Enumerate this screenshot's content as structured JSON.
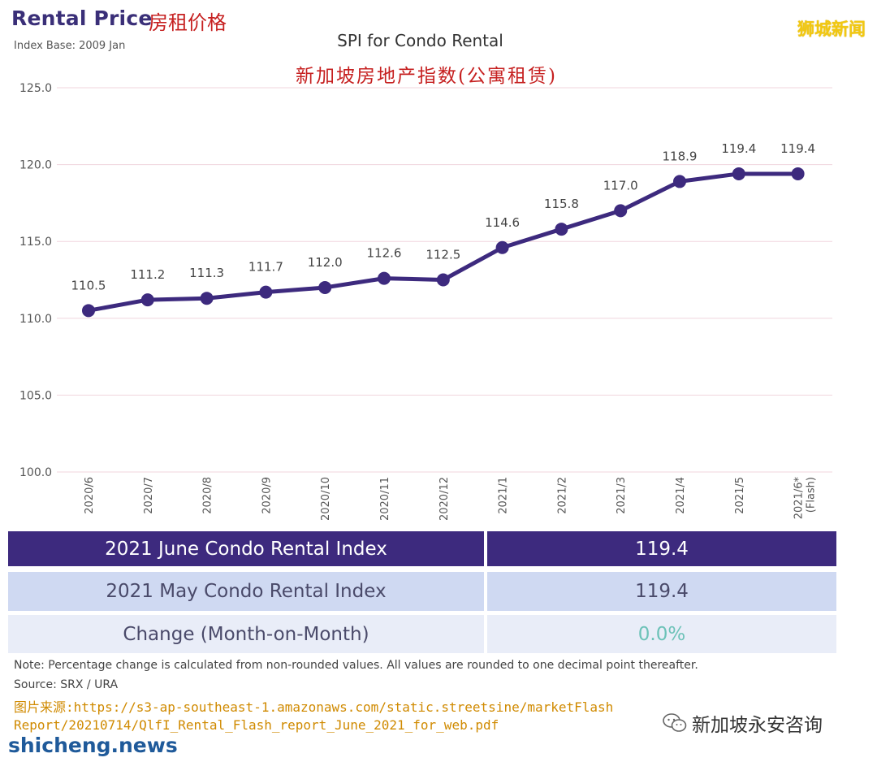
{
  "header": {
    "title": "Rental Price",
    "title_cn": "房租价格",
    "index_base": "Index Base: 2009 Jan",
    "brand": "狮城新闻"
  },
  "chart_data": {
    "type": "line",
    "title": "SPI for Condo Rental",
    "subtitle": "新加坡房地产指数(公寓租赁)",
    "categories": [
      "2020/6",
      "2020/7",
      "2020/8",
      "2020/9",
      "2020/10",
      "2020/11",
      "2020/12",
      "2021/1",
      "2021/2",
      "2021/3",
      "2021/4",
      "2021/5",
      "2021/6*\n(Flash)"
    ],
    "series": [
      {
        "values": [
          110.5,
          111.2,
          111.3,
          111.7,
          112.0,
          112.6,
          112.5,
          114.6,
          115.8,
          117.0,
          118.9,
          119.4,
          119.4
        ]
      }
    ],
    "data_labels": [
      "110.5",
      "111.2",
      "111.3",
      "111.7",
      "112.0",
      "112.6",
      "112.5",
      "114.6",
      "115.8",
      "117.0",
      "118.9",
      "119.4",
      "119.4"
    ],
    "y_ticks": [
      "125.0",
      "120.0",
      "115.0",
      "110.0",
      "105.0",
      "100.0"
    ],
    "ylim": [
      100,
      125
    ],
    "grid": true,
    "colors": {
      "line": "#3d2a7e",
      "grid": "#f0d6de"
    }
  },
  "table": {
    "rows": [
      {
        "label": "2021 June Condo Rental Index",
        "value": "119.4"
      },
      {
        "label": "2021 May Condo Rental Index",
        "value": "119.4"
      },
      {
        "label": "Change (Month-on-Month)",
        "value": "0.0%"
      }
    ]
  },
  "footer": {
    "note": "Note: Percentage change is calculated from non-rounded values.  All values are rounded to one decimal point thereafter.",
    "source": "Source: SRX / URA",
    "image_source_line1": "图片来源:https://s3-ap-southeast-1.amazonaws.com/static.streetsine/marketFlash",
    "image_source_line2": "Report/20210714/QlfI_Rental_Flash_report_June_2021_for_web.pdf",
    "watermark_left": "shicheng.news",
    "watermark_right": "新加坡永安咨询",
    "wechat_icon": "wechat-icon"
  }
}
